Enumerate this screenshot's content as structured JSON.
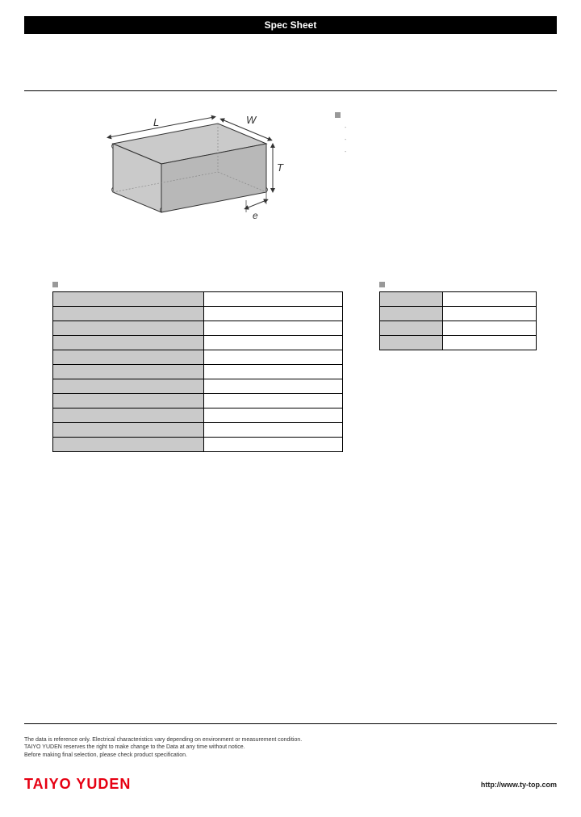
{
  "header": {
    "title": "Spec Sheet"
  },
  "diagram": {
    "body_fill": "#cacaca",
    "body_stroke": "#333333",
    "label_L": "L",
    "label_W": "W",
    "label_T": "T",
    "label_e": "e",
    "label_font_size": 13,
    "arrow_color": "#333333"
  },
  "features": {
    "heading": "",
    "items": [
      {
        "text": ""
      },
      {
        "text": ""
      },
      {
        "text": ""
      }
    ]
  },
  "spec_table": {
    "heading": "",
    "rows": [
      {
        "label": "",
        "value": ""
      },
      {
        "label": "",
        "value": ""
      },
      {
        "label": "",
        "value": ""
      },
      {
        "label": "",
        "value": ""
      },
      {
        "label": "",
        "value": ""
      },
      {
        "label": "",
        "value": ""
      },
      {
        "label": "",
        "value": ""
      },
      {
        "label": "",
        "value": ""
      },
      {
        "label": "",
        "value": ""
      },
      {
        "label": "",
        "value": ""
      },
      {
        "label": "",
        "value": ""
      }
    ]
  },
  "dim_table": {
    "heading": "",
    "rows": [
      {
        "label": "",
        "value": ""
      },
      {
        "label": "",
        "value": ""
      },
      {
        "label": "",
        "value": ""
      },
      {
        "label": "",
        "value": ""
      }
    ]
  },
  "footer": {
    "disclaimer_1": "The data is reference only. Electrical characteristics vary depending on environment or measurement condition.",
    "disclaimer_2": "TAIYO YUDEN reserves the right to make change to the Data at any time without notice.",
    "disclaimer_3": "Before making final selection, please check product specification.",
    "logo": "TAIYO YUDEN",
    "url": "http://www.ty-top.com"
  },
  "colors": {
    "header_bg": "#000000",
    "header_text": "#ffffff",
    "table_label_bg": "#cacaca",
    "table_value_bg": "#ffffff",
    "table_border": "#000000",
    "logo_color": "#e60012",
    "marker_color": "#999999"
  }
}
